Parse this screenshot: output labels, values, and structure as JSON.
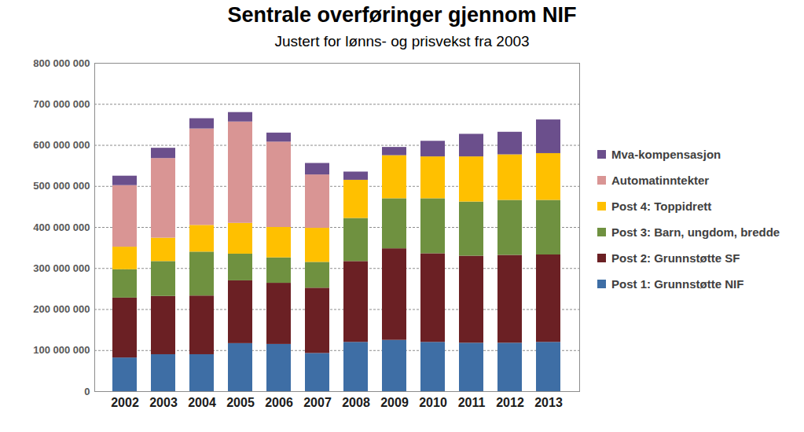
{
  "chart_data": {
    "type": "bar",
    "title": "Sentrale overføringer gjennom NIF",
    "subtitle": "Justert for lønns- og prisvekst fra 2003",
    "categories": [
      "2002",
      "2003",
      "2004",
      "2005",
      "2006",
      "2007",
      "2008",
      "2009",
      "2010",
      "2011",
      "2012",
      "2013"
    ],
    "series": [
      {
        "name": "Post 1: Grunnstøtte NIF",
        "color": "#3e6ea5",
        "values": [
          82000000,
          90000000,
          90000000,
          117000000,
          115000000,
          93000000,
          120000000,
          125000000,
          120000000,
          118000000,
          118000000,
          120000000
        ]
      },
      {
        "name": "Post 2: Grunnstøtte SF",
        "color": "#6b2024",
        "values": [
          146000000,
          142000000,
          143000000,
          153000000,
          149000000,
          159000000,
          197000000,
          223000000,
          216000000,
          212000000,
          214000000,
          213000000
        ]
      },
      {
        "name": "Post 3: Barn, ungdom, bredde",
        "color": "#6f9140",
        "values": [
          69000000,
          85000000,
          107000000,
          65000000,
          62000000,
          63000000,
          105000000,
          122000000,
          134000000,
          132000000,
          134000000,
          133000000
        ]
      },
      {
        "name": "Post 4: Toppidrett",
        "color": "#ffc000",
        "values": [
          55000000,
          57000000,
          65000000,
          75000000,
          74000000,
          83000000,
          93000000,
          105000000,
          102000000,
          110000000,
          111000000,
          114000000
        ]
      },
      {
        "name": "Automatinntekter",
        "color": "#d99594",
        "values": [
          150000000,
          194000000,
          235000000,
          247000000,
          208000000,
          130000000,
          0,
          0,
          0,
          0,
          0,
          0
        ]
      },
      {
        "name": "Mva-kompensasjon",
        "color": "#6b4f8c",
        "values": [
          23000000,
          25000000,
          25000000,
          23000000,
          22000000,
          28000000,
          20000000,
          20000000,
          38000000,
          55000000,
          55000000,
          82000000
        ]
      }
    ],
    "stacked": true,
    "ylim": [
      0,
      800000000
    ],
    "yticks": [
      0,
      {
        "value": 100000000,
        "label": "100 000 000"
      },
      {
        "value": 200000000,
        "label": "200 000 000"
      },
      {
        "value": 300000000,
        "label": "300 000 000"
      },
      {
        "value": 400000000,
        "label": "400 000 000"
      },
      {
        "value": 500000000,
        "label": "500 000 000"
      },
      {
        "value": 600000000,
        "label": "600 000 000"
      },
      {
        "value": 700000000,
        "label": "700 000 000"
      },
      {
        "value": 800000000,
        "label": "800 000 000"
      }
    ],
    "grid": true,
    "legend": "right"
  }
}
